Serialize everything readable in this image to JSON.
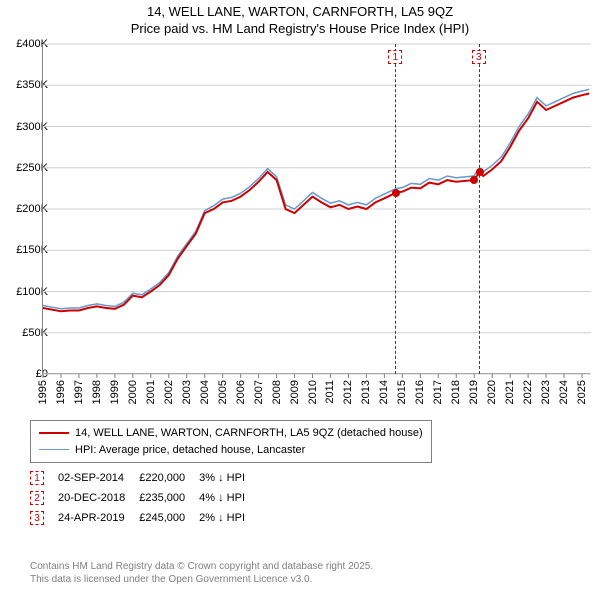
{
  "title_line1": "14, WELL LANE, WARTON, CARNFORTH, LA5 9QZ",
  "title_line2": "Price paid vs. HM Land Registry's House Price Index (HPI)",
  "chart": {
    "type": "line",
    "x_years": [
      1995,
      1996,
      1997,
      1998,
      1999,
      2000,
      2001,
      2002,
      2003,
      2004,
      2005,
      2006,
      2007,
      2008,
      2009,
      2010,
      2011,
      2012,
      2013,
      2014,
      2015,
      2016,
      2017,
      2018,
      2019,
      2020,
      2021,
      2022,
      2023,
      2024,
      2025
    ],
    "y_ticks": [
      0,
      50000,
      100000,
      150000,
      200000,
      250000,
      300000,
      350000,
      400000
    ],
    "y_tick_labels": [
      "£0",
      "£50K",
      "£100K",
      "£150K",
      "£200K",
      "£250K",
      "£300K",
      "£350K",
      "£400K"
    ],
    "ylim": [
      0,
      400000
    ],
    "xlim": [
      1995,
      2025.5
    ],
    "background_color": "#ffffff",
    "grid_color": "#d0d0d0",
    "axis_color": "#808080",
    "title_fontsize": 13,
    "tick_fontsize": 11,
    "series": [
      {
        "name": "price_paid",
        "label": "14, WELL LANE, WARTON, CARNFORTH, LA5 9QZ (detached house)",
        "color": "#cc0000",
        "line_width": 2,
        "points": [
          [
            1995,
            80000
          ],
          [
            1995.5,
            78000
          ],
          [
            1996,
            76000
          ],
          [
            1996.5,
            77000
          ],
          [
            1997,
            77000
          ],
          [
            1997.5,
            80000
          ],
          [
            1998,
            82000
          ],
          [
            1998.5,
            80000
          ],
          [
            1999,
            79000
          ],
          [
            1999.5,
            84000
          ],
          [
            2000,
            95000
          ],
          [
            2000.5,
            93000
          ],
          [
            2001,
            100000
          ],
          [
            2001.5,
            108000
          ],
          [
            2002,
            120000
          ],
          [
            2002.5,
            140000
          ],
          [
            2003,
            155000
          ],
          [
            2003.5,
            170000
          ],
          [
            2004,
            195000
          ],
          [
            2004.5,
            200000
          ],
          [
            2005,
            208000
          ],
          [
            2005.5,
            210000
          ],
          [
            2006,
            215000
          ],
          [
            2006.5,
            223000
          ],
          [
            2007,
            233000
          ],
          [
            2007.5,
            245000
          ],
          [
            2008,
            235000
          ],
          [
            2008.5,
            200000
          ],
          [
            2009,
            195000
          ],
          [
            2009.5,
            205000
          ],
          [
            2010,
            215000
          ],
          [
            2010.5,
            208000
          ],
          [
            2011,
            202000
          ],
          [
            2011.5,
            205000
          ],
          [
            2012,
            200000
          ],
          [
            2012.5,
            203000
          ],
          [
            2013,
            200000
          ],
          [
            2013.5,
            208000
          ],
          [
            2014,
            213000
          ],
          [
            2014.67,
            220000
          ],
          [
            2015,
            221000
          ],
          [
            2015.5,
            226000
          ],
          [
            2016,
            225000
          ],
          [
            2016.5,
            232000
          ],
          [
            2017,
            230000
          ],
          [
            2017.5,
            235000
          ],
          [
            2018,
            233000
          ],
          [
            2018.97,
            235000
          ],
          [
            2019.31,
            245000
          ],
          [
            2019.5,
            240000
          ],
          [
            2020,
            248000
          ],
          [
            2020.5,
            258000
          ],
          [
            2021,
            275000
          ],
          [
            2021.5,
            295000
          ],
          [
            2022,
            310000
          ],
          [
            2022.5,
            330000
          ],
          [
            2023,
            320000
          ],
          [
            2023.5,
            325000
          ],
          [
            2024,
            330000
          ],
          [
            2024.5,
            335000
          ],
          [
            2025,
            338000
          ],
          [
            2025.4,
            340000
          ]
        ]
      },
      {
        "name": "hpi",
        "label": "HPI: Average price, detached house, Lancaster",
        "color": "#6699cc",
        "line_width": 1.5,
        "points": [
          [
            1995,
            83000
          ],
          [
            1995.5,
            81000
          ],
          [
            1996,
            79000
          ],
          [
            1996.5,
            80000
          ],
          [
            1997,
            80000
          ],
          [
            1997.5,
            83000
          ],
          [
            1998,
            85000
          ],
          [
            1998.5,
            83000
          ],
          [
            1999,
            82000
          ],
          [
            1999.5,
            87000
          ],
          [
            2000,
            98000
          ],
          [
            2000.5,
            96000
          ],
          [
            2001,
            103000
          ],
          [
            2001.5,
            111000
          ],
          [
            2002,
            123000
          ],
          [
            2002.5,
            143000
          ],
          [
            2003,
            158000
          ],
          [
            2003.5,
            173000
          ],
          [
            2004,
            198000
          ],
          [
            2004.5,
            204000
          ],
          [
            2005,
            212000
          ],
          [
            2005.5,
            214000
          ],
          [
            2006,
            219000
          ],
          [
            2006.5,
            227000
          ],
          [
            2007,
            237000
          ],
          [
            2007.5,
            249000
          ],
          [
            2008,
            239000
          ],
          [
            2008.5,
            205000
          ],
          [
            2009,
            200000
          ],
          [
            2009.5,
            210000
          ],
          [
            2010,
            220000
          ],
          [
            2010.5,
            213000
          ],
          [
            2011,
            207000
          ],
          [
            2011.5,
            210000
          ],
          [
            2012,
            205000
          ],
          [
            2012.5,
            208000
          ],
          [
            2013,
            205000
          ],
          [
            2013.5,
            213000
          ],
          [
            2014,
            218000
          ],
          [
            2014.67,
            225000
          ],
          [
            2015,
            226000
          ],
          [
            2015.5,
            231000
          ],
          [
            2016,
            230000
          ],
          [
            2016.5,
            237000
          ],
          [
            2017,
            235000
          ],
          [
            2017.5,
            240000
          ],
          [
            2018,
            238000
          ],
          [
            2018.97,
            240000
          ],
          [
            2019.31,
            250000
          ],
          [
            2019.5,
            245000
          ],
          [
            2020,
            253000
          ],
          [
            2020.5,
            263000
          ],
          [
            2021,
            280000
          ],
          [
            2021.5,
            300000
          ],
          [
            2022,
            315000
          ],
          [
            2022.5,
            335000
          ],
          [
            2023,
            325000
          ],
          [
            2023.5,
            330000
          ],
          [
            2024,
            335000
          ],
          [
            2024.5,
            340000
          ],
          [
            2025,
            343000
          ],
          [
            2025.4,
            345000
          ]
        ]
      }
    ],
    "sale_markers": [
      {
        "n": "1",
        "x": 2014.67,
        "y": 220000,
        "color": "#cc0000"
      },
      {
        "n": "2",
        "x": 2018.97,
        "y": 235000,
        "color": "#cc0000"
      },
      {
        "n": "3",
        "x": 2019.31,
        "y": 245000,
        "color": "#cc0000"
      }
    ],
    "visible_marker_boxes": [
      {
        "n": "1",
        "x": 2014.67,
        "color": "#cc0000"
      },
      {
        "n": "3",
        "x": 2019.31,
        "color": "#cc0000"
      }
    ]
  },
  "legend": {
    "border_color": "#808080",
    "entries": [
      {
        "color": "#cc0000",
        "width": 2,
        "label": "14, WELL LANE, WARTON, CARNFORTH, LA5 9QZ (detached house)"
      },
      {
        "color": "#6699cc",
        "width": 1.5,
        "label": "HPI: Average price, detached house, Lancaster"
      }
    ]
  },
  "sales_table": {
    "rows": [
      {
        "n": "1",
        "color": "#cc0000",
        "date": "02-SEP-2014",
        "price": "£220,000",
        "pct": "3%",
        "arrow": "↓",
        "suffix": "HPI"
      },
      {
        "n": "2",
        "color": "#cc0000",
        "date": "20-DEC-2018",
        "price": "£235,000",
        "pct": "4%",
        "arrow": "↓",
        "suffix": "HPI"
      },
      {
        "n": "3",
        "color": "#cc0000",
        "date": "24-APR-2019",
        "price": "£245,000",
        "pct": "2%",
        "arrow": "↓",
        "suffix": "HPI"
      }
    ]
  },
  "footer": {
    "line1": "Contains HM Land Registry data © Crown copyright and database right 2025.",
    "line2": "This data is licensed under the Open Government Licence v3.0."
  }
}
